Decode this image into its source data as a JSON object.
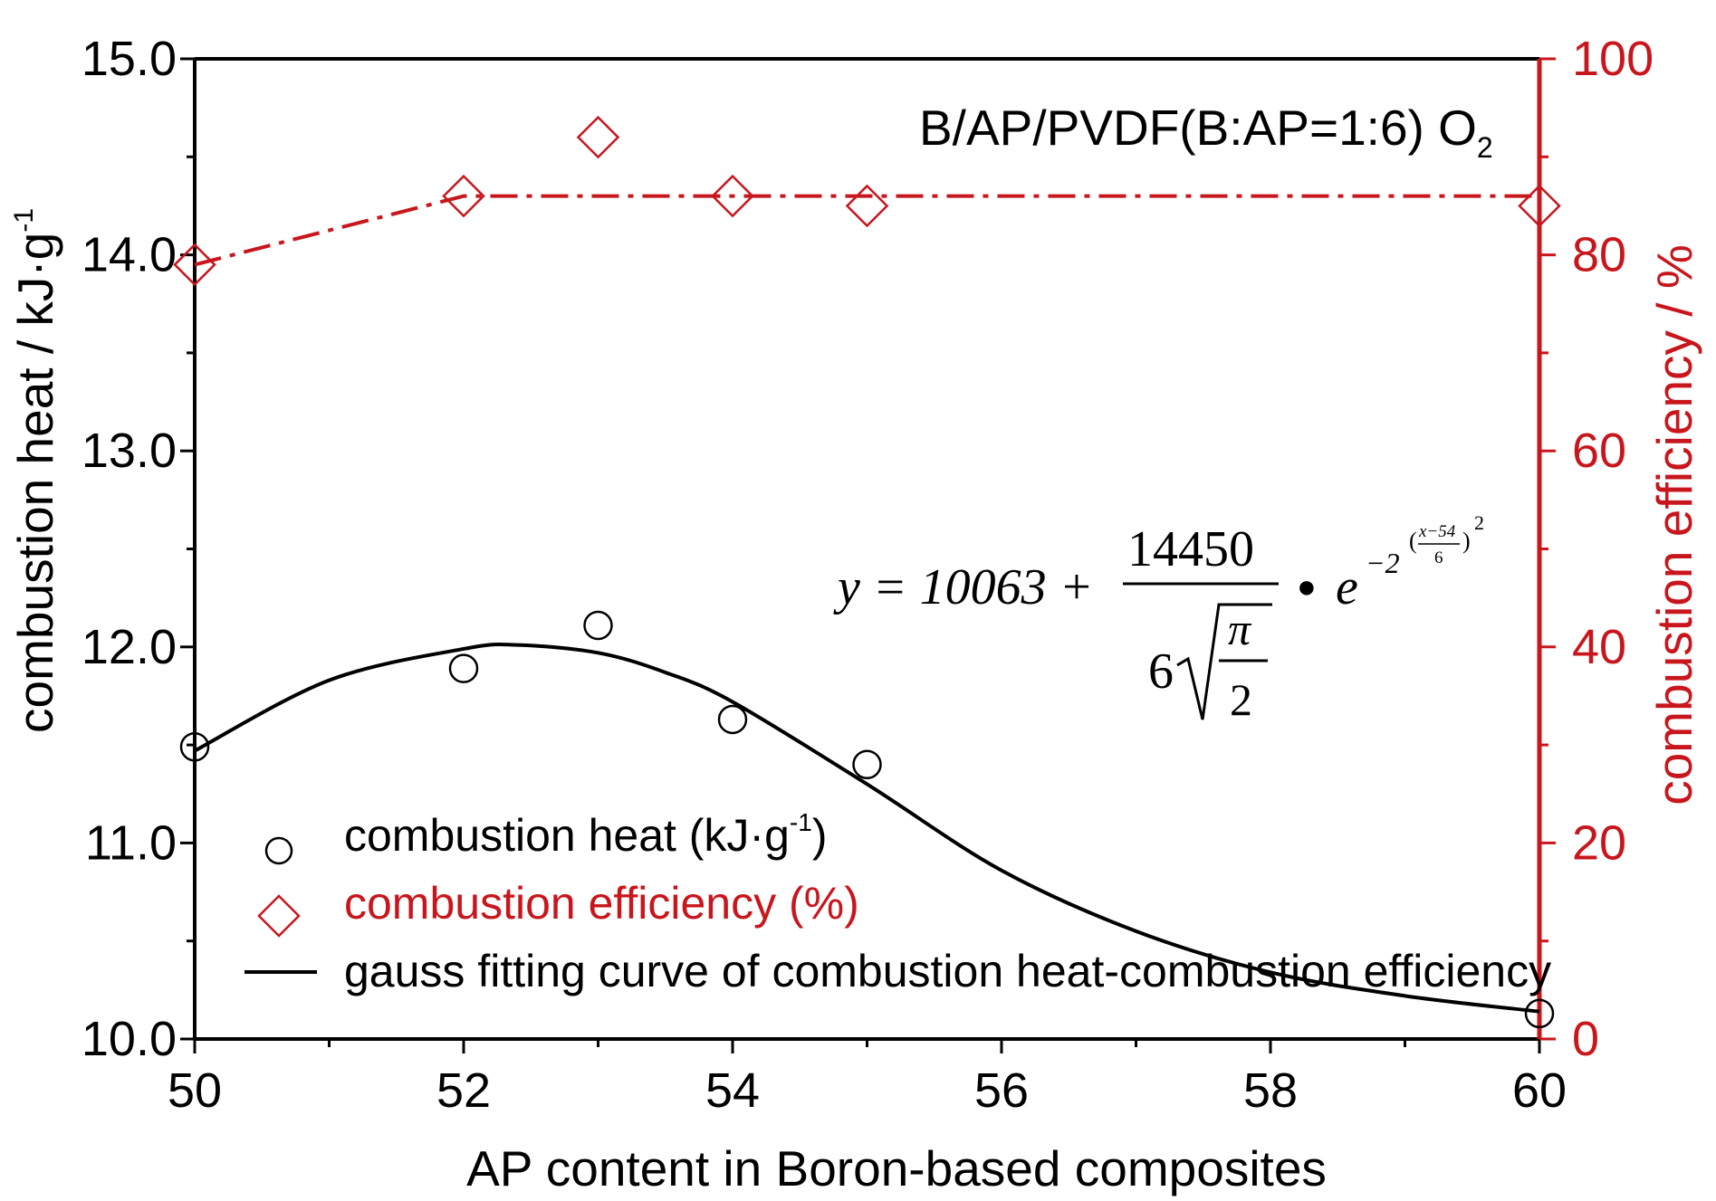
{
  "chart_data": {
    "type": "scatter",
    "annotation_text": "B/AP/PVDF(B:AP=1:6) O",
    "annotation_sub": "2",
    "xlabel": "AP content in Boron-based composites",
    "ylabel_left": "combustion heat / kJ·g",
    "ylabel_left_sup": "-1",
    "ylabel_right": "combustion efficiency / %",
    "xlim": [
      50,
      60
    ],
    "ylim_left": [
      10.0,
      15.0
    ],
    "ylim_right": [
      0,
      100
    ],
    "x_ticks": [
      50,
      52,
      54,
      56,
      58,
      60
    ],
    "x_tick_labels": [
      "50",
      "52",
      "54",
      "56",
      "58",
      "60"
    ],
    "y_left_ticks": [
      10.0,
      11.0,
      12.0,
      13.0,
      14.0,
      15.0
    ],
    "y_left_tick_labels": [
      "10.0",
      "11.0",
      "12.0",
      "13.0",
      "14.0",
      "15.0"
    ],
    "y_right_ticks": [
      0,
      20,
      40,
      60,
      80,
      100
    ],
    "y_right_tick_labels": [
      "0",
      "20",
      "40",
      "60",
      "80",
      "100"
    ],
    "legend_position": "bottom-left",
    "colors": {
      "heat": "#000000",
      "efficiency": "#c8161d"
    },
    "series": [
      {
        "name": "combustion heat (kJ·g",
        "name_sup": "-1",
        "name_tail": ")",
        "axis": "left",
        "marker": "circle",
        "x": [
          50,
          52,
          53,
          54,
          55,
          60
        ],
        "y": [
          11.49,
          11.89,
          12.11,
          11.63,
          11.4,
          10.13
        ]
      },
      {
        "name": "combustion efficiency (%)",
        "axis": "right",
        "marker": "diamond",
        "x": [
          50,
          52,
          53,
          54,
          55,
          60
        ],
        "y": [
          79,
          86,
          92,
          86,
          85,
          85
        ]
      },
      {
        "name": "gauss fitting curve of combustion heat-combustion efficiency",
        "axis": "left",
        "marker": "line",
        "x": [
          50,
          51,
          52,
          52.4,
          53,
          53.5,
          54,
          55,
          56,
          57,
          58,
          59,
          60
        ],
        "y": [
          11.47,
          11.83,
          11.99,
          12.01,
          11.97,
          11.87,
          11.72,
          11.3,
          10.86,
          10.55,
          10.34,
          10.22,
          10.14
        ]
      },
      {
        "axis": "right",
        "marker": "dash-dot-line",
        "x": [
          50,
          52,
          60
        ],
        "y": [
          79,
          86,
          86
        ]
      }
    ],
    "equation": {
      "lhs": "y = 10063 +",
      "numerator": "14450",
      "denominator_coef": "6",
      "pi": "π",
      "two": "2",
      "dot": "●",
      "e": "e",
      "exp_coef": "−2",
      "exp_open": "(",
      "exp_num": "x−54",
      "exp_den": "6",
      "exp_close": ")",
      "exp_power": "2"
    }
  }
}
